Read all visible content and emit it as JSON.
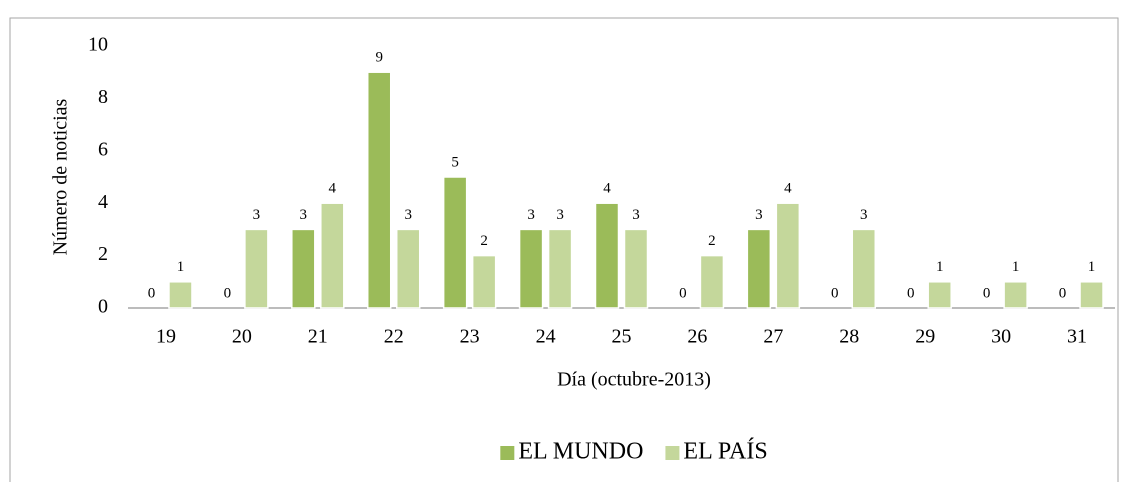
{
  "chart_data": {
    "type": "bar",
    "categories": [
      "19",
      "20",
      "21",
      "22",
      "23",
      "24",
      "25",
      "26",
      "27",
      "28",
      "29",
      "30",
      "31"
    ],
    "series": [
      {
        "name": "EL MUNDO",
        "color": "#9bbb59",
        "values": [
          0,
          0,
          3,
          9,
          5,
          3,
          4,
          0,
          3,
          0,
          0,
          0,
          0
        ]
      },
      {
        "name": "EL PAÍS",
        "color": "#c4d79b",
        "values": [
          1,
          3,
          4,
          3,
          2,
          3,
          3,
          2,
          4,
          3,
          1,
          1,
          1
        ]
      }
    ],
    "x_label": "Día (octubre-2013)",
    "y_label": "Número de noticias",
    "ylim": [
      0,
      10
    ],
    "yticks": [
      0,
      2,
      4,
      6,
      8,
      10
    ],
    "grid": false,
    "legend": "bottom",
    "data_labels": true
  }
}
